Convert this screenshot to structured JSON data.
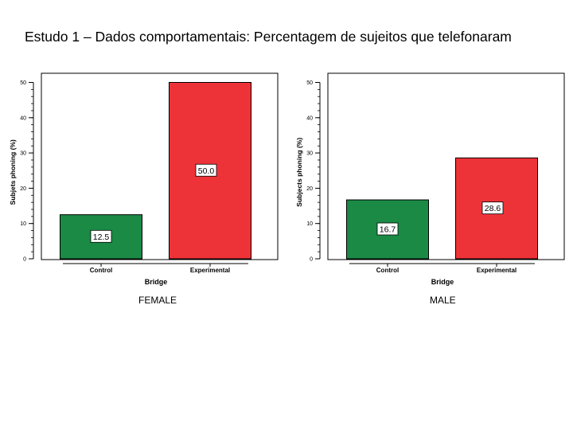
{
  "page": {
    "title": "Estudo 1 – Dados comportamentais: Percentagem de sujeitos que telefonaram"
  },
  "captions": [
    "FEMALE",
    "MALE"
  ],
  "chart_data": [
    {
      "type": "bar",
      "categories": [
        "Control",
        "Experimental"
      ],
      "values": [
        12.5,
        50.0
      ],
      "value_labels": [
        "12.5",
        "50.0"
      ],
      "colors": [
        "#1a8a45",
        "#ee3338"
      ],
      "xlabel": "Bridge",
      "ylabel": "Subjets phoning (%)",
      "ylim": [
        0,
        50
      ],
      "yticks": [
        0,
        10,
        20,
        30,
        40,
        50
      ],
      "caption": "FEMALE"
    },
    {
      "type": "bar",
      "categories": [
        "Control",
        "Experimental"
      ],
      "values": [
        16.7,
        28.6
      ],
      "value_labels": [
        "16.7",
        "28.6"
      ],
      "colors": [
        "#1a8a45",
        "#ee3338"
      ],
      "xlabel": "Bridge",
      "ylabel": "Subjects phoning (%)",
      "ylim": [
        0,
        50
      ],
      "yticks": [
        0,
        10,
        20,
        30,
        40,
        50
      ],
      "caption": "MALE"
    }
  ]
}
